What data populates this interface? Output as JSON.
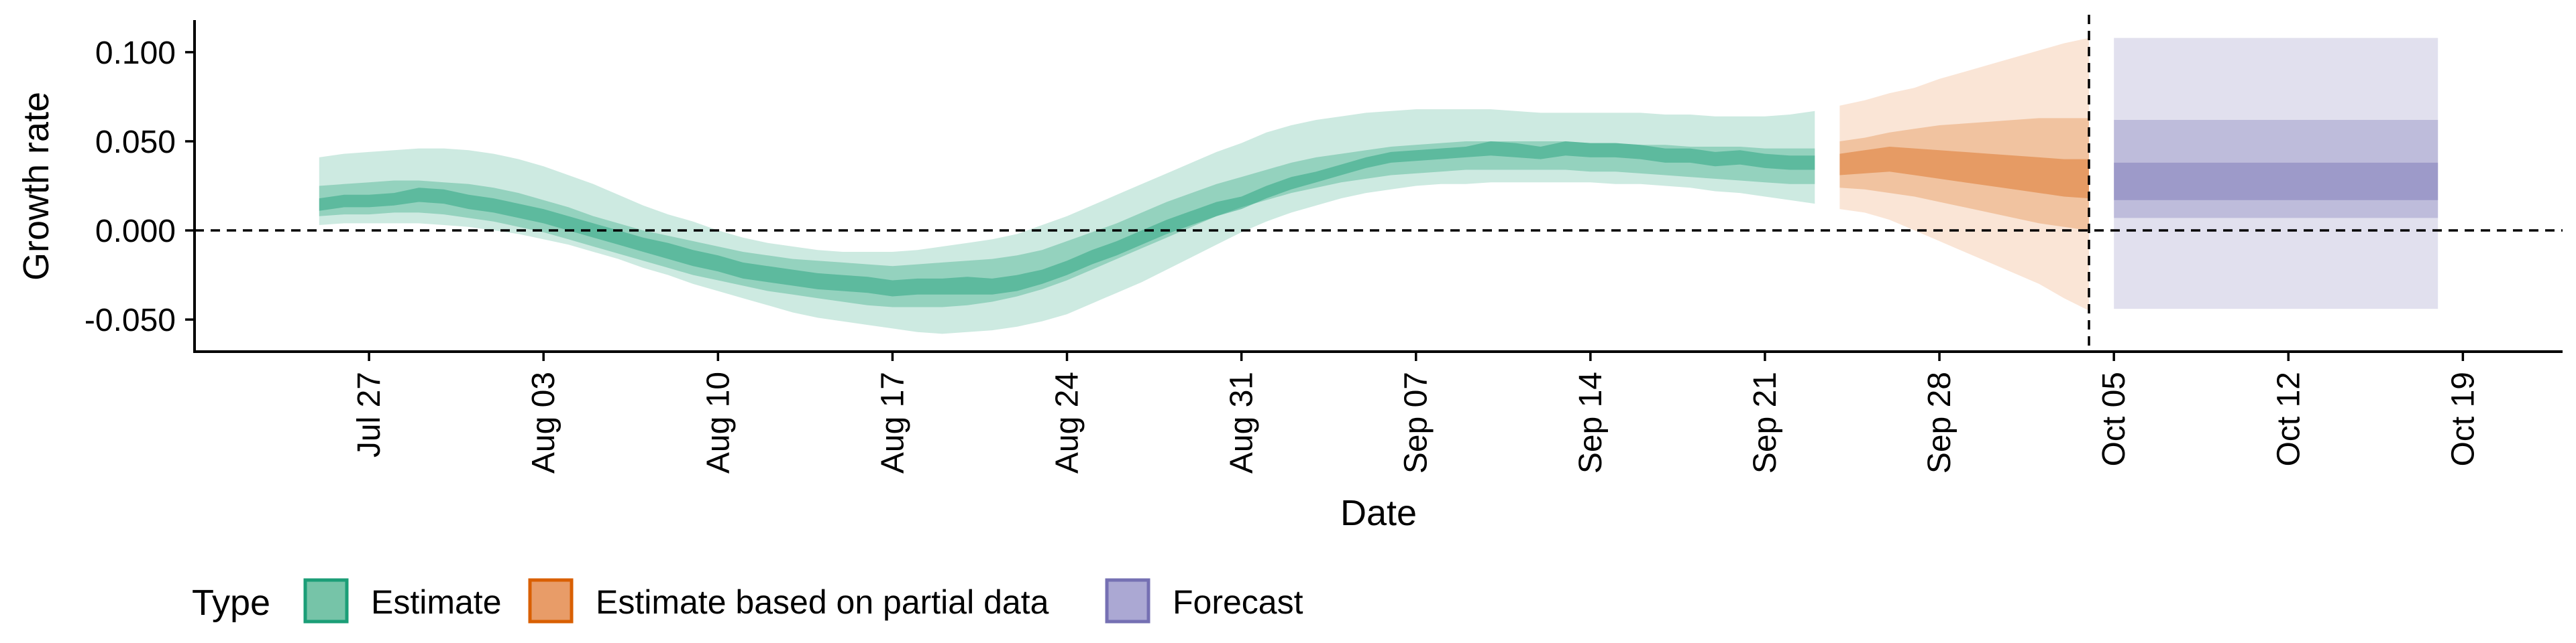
{
  "chart_data": {
    "type": "area",
    "xlabel": "Date",
    "ylabel": "Growth rate",
    "xlim": [
      "2020-07-20",
      "2020-10-23"
    ],
    "ylim": [
      -0.068,
      0.118
    ],
    "x_ticks": [
      {
        "date": "2020-07-27",
        "label": "Jul 27"
      },
      {
        "date": "2020-08-03",
        "label": "Aug 03"
      },
      {
        "date": "2020-08-10",
        "label": "Aug 10"
      },
      {
        "date": "2020-08-17",
        "label": "Aug 17"
      },
      {
        "date": "2020-08-24",
        "label": "Aug 24"
      },
      {
        "date": "2020-08-31",
        "label": "Aug 31"
      },
      {
        "date": "2020-09-07",
        "label": "Sep 07"
      },
      {
        "date": "2020-09-14",
        "label": "Sep 14"
      },
      {
        "date": "2020-09-21",
        "label": "Sep 21"
      },
      {
        "date": "2020-09-28",
        "label": "Sep 28"
      },
      {
        "date": "2020-10-05",
        "label": "Oct 05"
      },
      {
        "date": "2020-10-12",
        "label": "Oct 12"
      },
      {
        "date": "2020-10-19",
        "label": "Oct 19"
      }
    ],
    "y_ticks": [
      {
        "value": -0.05,
        "label": "-0.050"
      },
      {
        "value": 0.0,
        "label": "0.000"
      },
      {
        "value": 0.05,
        "label": "0.050"
      },
      {
        "value": 0.1,
        "label": "0.100"
      }
    ],
    "reference_lines": [
      {
        "axis": "y",
        "value": 0.0,
        "style": "dashed"
      },
      {
        "axis": "x",
        "value": "2020-10-04",
        "style": "dashed"
      }
    ],
    "legend": {
      "title": "Type",
      "position": "bottom-left",
      "items": [
        {
          "label": "Estimate",
          "fill": "#76c4a8",
          "stroke": "#1b9e77"
        },
        {
          "label": "Estimate based on partial data",
          "fill": "#e89c68",
          "stroke": "#d95f02"
        },
        {
          "label": "Forecast",
          "fill": "#aba8d3",
          "stroke": "#7570b3"
        }
      ]
    },
    "band_opacity": {
      "outer": 0.22,
      "mid": 0.32,
      "inner": 0.45
    },
    "series": [
      {
        "name": "Estimate",
        "colors": {
          "outer": "#1b9e77",
          "mid": "#1b9e77",
          "inner": "#1b9e77"
        },
        "x": [
          "2020-07-25",
          "2020-07-26",
          "2020-07-27",
          "2020-07-28",
          "2020-07-29",
          "2020-07-30",
          "2020-07-31",
          "2020-08-01",
          "2020-08-02",
          "2020-08-03",
          "2020-08-04",
          "2020-08-05",
          "2020-08-06",
          "2020-08-07",
          "2020-08-08",
          "2020-08-09",
          "2020-08-10",
          "2020-08-11",
          "2020-08-12",
          "2020-08-13",
          "2020-08-14",
          "2020-08-15",
          "2020-08-16",
          "2020-08-17",
          "2020-08-18",
          "2020-08-19",
          "2020-08-20",
          "2020-08-21",
          "2020-08-22",
          "2020-08-23",
          "2020-08-24",
          "2020-08-25",
          "2020-08-26",
          "2020-08-27",
          "2020-08-28",
          "2020-08-29",
          "2020-08-30",
          "2020-08-31",
          "2020-09-01",
          "2020-09-02",
          "2020-09-03",
          "2020-09-04",
          "2020-09-05",
          "2020-09-06",
          "2020-09-07",
          "2020-09-08",
          "2020-09-09",
          "2020-09-10",
          "2020-09-11",
          "2020-09-12",
          "2020-09-13",
          "2020-09-14",
          "2020-09-15",
          "2020-09-16",
          "2020-09-17",
          "2020-09-18",
          "2020-09-19",
          "2020-09-20",
          "2020-09-21",
          "2020-09-22",
          "2020-09-23"
        ],
        "median": [
          0.014,
          0.016,
          0.016,
          0.017,
          0.02,
          0.019,
          0.016,
          0.014,
          0.011,
          0.008,
          0.004,
          0.0,
          -0.004,
          -0.008,
          -0.011,
          -0.015,
          -0.018,
          -0.022,
          -0.024,
          -0.026,
          -0.028,
          -0.029,
          -0.03,
          -0.032,
          -0.031,
          -0.031,
          -0.031,
          -0.032,
          -0.03,
          -0.026,
          -0.021,
          -0.015,
          -0.01,
          -0.004,
          0.002,
          0.007,
          0.012,
          0.015,
          0.021,
          0.026,
          0.03,
          0.034,
          0.038,
          0.041,
          0.042,
          0.043,
          0.044,
          0.046,
          0.045,
          0.043,
          0.046,
          0.045,
          0.045,
          0.044,
          0.042,
          0.042,
          0.04,
          0.041,
          0.039,
          0.038,
          0.038
        ],
        "outer_lower": [
          0.003,
          0.004,
          0.004,
          0.004,
          0.004,
          0.003,
          0.002,
          0.0,
          -0.002,
          -0.005,
          -0.008,
          -0.012,
          -0.016,
          -0.021,
          -0.025,
          -0.03,
          -0.034,
          -0.038,
          -0.042,
          -0.046,
          -0.049,
          -0.051,
          -0.053,
          -0.055,
          -0.057,
          -0.058,
          -0.057,
          -0.056,
          -0.054,
          -0.051,
          -0.047,
          -0.041,
          -0.035,
          -0.029,
          -0.022,
          -0.015,
          -0.008,
          -0.001,
          0.005,
          0.01,
          0.014,
          0.018,
          0.021,
          0.023,
          0.025,
          0.026,
          0.026,
          0.027,
          0.027,
          0.027,
          0.027,
          0.027,
          0.026,
          0.026,
          0.025,
          0.024,
          0.022,
          0.021,
          0.019,
          0.017,
          0.015
        ],
        "outer_upper": [
          0.041,
          0.043,
          0.044,
          0.045,
          0.046,
          0.046,
          0.045,
          0.043,
          0.04,
          0.036,
          0.031,
          0.026,
          0.02,
          0.014,
          0.009,
          0.005,
          0.0,
          -0.004,
          -0.007,
          -0.009,
          -0.011,
          -0.012,
          -0.012,
          -0.012,
          -0.011,
          -0.009,
          -0.007,
          -0.005,
          -0.002,
          0.003,
          0.008,
          0.014,
          0.02,
          0.026,
          0.032,
          0.038,
          0.044,
          0.049,
          0.055,
          0.059,
          0.062,
          0.064,
          0.066,
          0.067,
          0.068,
          0.068,
          0.068,
          0.068,
          0.067,
          0.066,
          0.066,
          0.066,
          0.066,
          0.066,
          0.065,
          0.065,
          0.064,
          0.064,
          0.064,
          0.065,
          0.067
        ],
        "mid_lower": [
          0.008,
          0.009,
          0.009,
          0.01,
          0.01,
          0.009,
          0.007,
          0.005,
          0.002,
          -0.001,
          -0.005,
          -0.009,
          -0.013,
          -0.017,
          -0.021,
          -0.025,
          -0.028,
          -0.031,
          -0.034,
          -0.036,
          -0.038,
          -0.04,
          -0.042,
          -0.043,
          -0.043,
          -0.043,
          -0.042,
          -0.04,
          -0.037,
          -0.033,
          -0.028,
          -0.022,
          -0.016,
          -0.01,
          -0.004,
          0.002,
          0.008,
          0.013,
          0.017,
          0.021,
          0.024,
          0.027,
          0.029,
          0.031,
          0.032,
          0.033,
          0.034,
          0.034,
          0.034,
          0.034,
          0.034,
          0.033,
          0.033,
          0.032,
          0.031,
          0.03,
          0.029,
          0.028,
          0.027,
          0.026,
          0.026
        ],
        "mid_upper": [
          0.025,
          0.026,
          0.027,
          0.028,
          0.028,
          0.027,
          0.026,
          0.024,
          0.021,
          0.017,
          0.013,
          0.008,
          0.004,
          0.0,
          -0.003,
          -0.006,
          -0.009,
          -0.012,
          -0.014,
          -0.016,
          -0.017,
          -0.018,
          -0.019,
          -0.02,
          -0.019,
          -0.018,
          -0.017,
          -0.016,
          -0.014,
          -0.011,
          -0.006,
          -0.001,
          0.004,
          0.01,
          0.016,
          0.021,
          0.026,
          0.03,
          0.034,
          0.038,
          0.041,
          0.043,
          0.045,
          0.047,
          0.048,
          0.049,
          0.05,
          0.05,
          0.05,
          0.05,
          0.05,
          0.049,
          0.049,
          0.048,
          0.048,
          0.047,
          0.047,
          0.047,
          0.046,
          0.046,
          0.046
        ],
        "inner_lower": [
          0.011,
          0.013,
          0.013,
          0.014,
          0.016,
          0.015,
          0.012,
          0.01,
          0.007,
          0.004,
          0.0,
          -0.004,
          -0.008,
          -0.012,
          -0.016,
          -0.02,
          -0.023,
          -0.027,
          -0.029,
          -0.031,
          -0.033,
          -0.034,
          -0.035,
          -0.037,
          -0.036,
          -0.036,
          -0.036,
          -0.036,
          -0.034,
          -0.03,
          -0.025,
          -0.019,
          -0.014,
          -0.008,
          -0.002,
          0.003,
          0.008,
          0.012,
          0.018,
          0.023,
          0.027,
          0.031,
          0.035,
          0.038,
          0.039,
          0.04,
          0.041,
          0.042,
          0.041,
          0.04,
          0.042,
          0.041,
          0.041,
          0.04,
          0.038,
          0.038,
          0.036,
          0.037,
          0.035,
          0.034,
          0.034
        ],
        "inner_upper": [
          0.018,
          0.02,
          0.02,
          0.021,
          0.024,
          0.023,
          0.02,
          0.018,
          0.015,
          0.012,
          0.008,
          0.004,
          0.0,
          -0.004,
          -0.007,
          -0.011,
          -0.014,
          -0.018,
          -0.02,
          -0.022,
          -0.024,
          -0.025,
          -0.026,
          -0.028,
          -0.027,
          -0.027,
          -0.026,
          -0.027,
          -0.025,
          -0.022,
          -0.017,
          -0.011,
          -0.006,
          0.0,
          0.006,
          0.011,
          0.016,
          0.019,
          0.025,
          0.03,
          0.033,
          0.037,
          0.041,
          0.044,
          0.045,
          0.046,
          0.047,
          0.05,
          0.049,
          0.047,
          0.05,
          0.049,
          0.049,
          0.048,
          0.046,
          0.046,
          0.044,
          0.045,
          0.043,
          0.042,
          0.042
        ]
      },
      {
        "name": "Estimate based on partial data",
        "colors": {
          "outer": "#e98a45",
          "mid": "#e07c2e",
          "inner": "#d96a1a"
        },
        "x": [
          "2020-09-24",
          "2020-09-25",
          "2020-09-26",
          "2020-09-27",
          "2020-09-28",
          "2020-09-29",
          "2020-09-30",
          "2020-10-01",
          "2020-10-02",
          "2020-10-03",
          "2020-10-04"
        ],
        "median": [
          0.037,
          0.039,
          0.04,
          0.038,
          0.037,
          0.036,
          0.034,
          0.033,
          0.031,
          0.03,
          0.03
        ],
        "outer_lower": [
          0.012,
          0.01,
          0.006,
          0.0,
          -0.006,
          -0.012,
          -0.018,
          -0.024,
          -0.03,
          -0.038,
          -0.045
        ],
        "outer_upper": [
          0.07,
          0.073,
          0.077,
          0.08,
          0.085,
          0.089,
          0.093,
          0.097,
          0.101,
          0.105,
          0.108
        ],
        "mid_lower": [
          0.024,
          0.023,
          0.021,
          0.019,
          0.016,
          0.013,
          0.01,
          0.007,
          0.004,
          0.002,
          0.0
        ],
        "mid_upper": [
          0.05,
          0.052,
          0.055,
          0.057,
          0.059,
          0.06,
          0.061,
          0.062,
          0.063,
          0.063,
          0.063
        ],
        "inner_lower": [
          0.031,
          0.032,
          0.033,
          0.031,
          0.029,
          0.027,
          0.025,
          0.023,
          0.021,
          0.019,
          0.018
        ],
        "inner_upper": [
          0.043,
          0.045,
          0.047,
          0.046,
          0.045,
          0.044,
          0.043,
          0.042,
          0.041,
          0.04,
          0.04
        ]
      },
      {
        "name": "Forecast",
        "colors": {
          "outer": "#7570b3",
          "mid": "#7570b3",
          "inner": "#7570b3"
        },
        "x": [
          "2020-10-05",
          "2020-10-18"
        ],
        "median": [
          0.027,
          0.027
        ],
        "outer_lower": [
          -0.044,
          -0.044
        ],
        "outer_upper": [
          0.108,
          0.108
        ],
        "mid_lower": [
          0.007,
          0.007
        ],
        "mid_upper": [
          0.062,
          0.062
        ],
        "inner_lower": [
          0.017,
          0.017
        ],
        "inner_upper": [
          0.038,
          0.038
        ]
      }
    ]
  }
}
